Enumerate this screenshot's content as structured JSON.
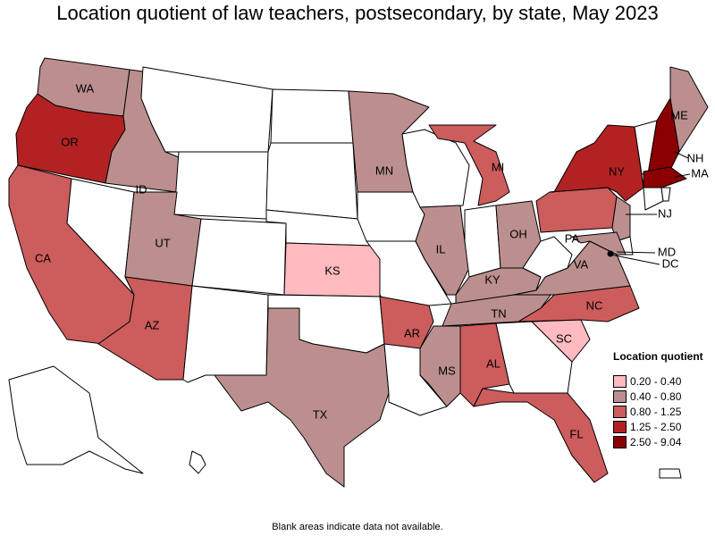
{
  "title": "Location quotient of law teachers, postsecondary, by state, May 2023",
  "footnote": "Blank areas indicate data not available.",
  "legend": {
    "title": "Location quotient",
    "classes": [
      {
        "label": "0.20 - 0.40",
        "color": "#ffbbc0"
      },
      {
        "label": "0.40 - 0.80",
        "color": "#bc8f8f"
      },
      {
        "label": "0.80 - 1.25",
        "color": "#cd5c5c"
      },
      {
        "label": "1.25 - 2.50",
        "color": "#b22222"
      },
      {
        "label": "2.50 - 9.04",
        "color": "#8b0000"
      }
    ]
  },
  "no_data_color": "#ffffff",
  "states": {
    "WA": 1,
    "OR": 3,
    "CA": 2,
    "ID": 1,
    "UT": 1,
    "AZ": 2,
    "MN": 1,
    "MI": 2,
    "IL": 1,
    "OH": 1,
    "KY": 1,
    "TN": 1,
    "MS": 1,
    "AL": 2,
    "AR": 2,
    "TX": 1,
    "KS": 0,
    "SC": 0,
    "NC": 2,
    "VA": 1,
    "PA": 2,
    "NY": 3,
    "NH": 4,
    "MA": 4,
    "ME": 1,
    "NJ": 1,
    "MD": 1,
    "DC": 4,
    "FL": 2,
    "NV": null,
    "MT": null,
    "WY": null,
    "CO": null,
    "NM": null,
    "ND": null,
    "SD": null,
    "NE": null,
    "OK": null,
    "IA": null,
    "MO": null,
    "LA": null,
    "WI": null,
    "IN": null,
    "GA": null,
    "WV": null,
    "VT": null,
    "CT": null,
    "RI": null,
    "DE": null,
    "AK": null,
    "HI": null,
    "PR": null
  },
  "labels": [
    "WA",
    "OR",
    "CA",
    "ID",
    "UT",
    "AZ",
    "MN",
    "MI",
    "IL",
    "OH",
    "KY",
    "TN",
    "MS",
    "AL",
    "AR",
    "TX",
    "KS",
    "SC",
    "NC",
    "VA",
    "PA",
    "NY",
    "NH",
    "MA",
    "ME",
    "NJ",
    "MD",
    "DC",
    "FL"
  ]
}
